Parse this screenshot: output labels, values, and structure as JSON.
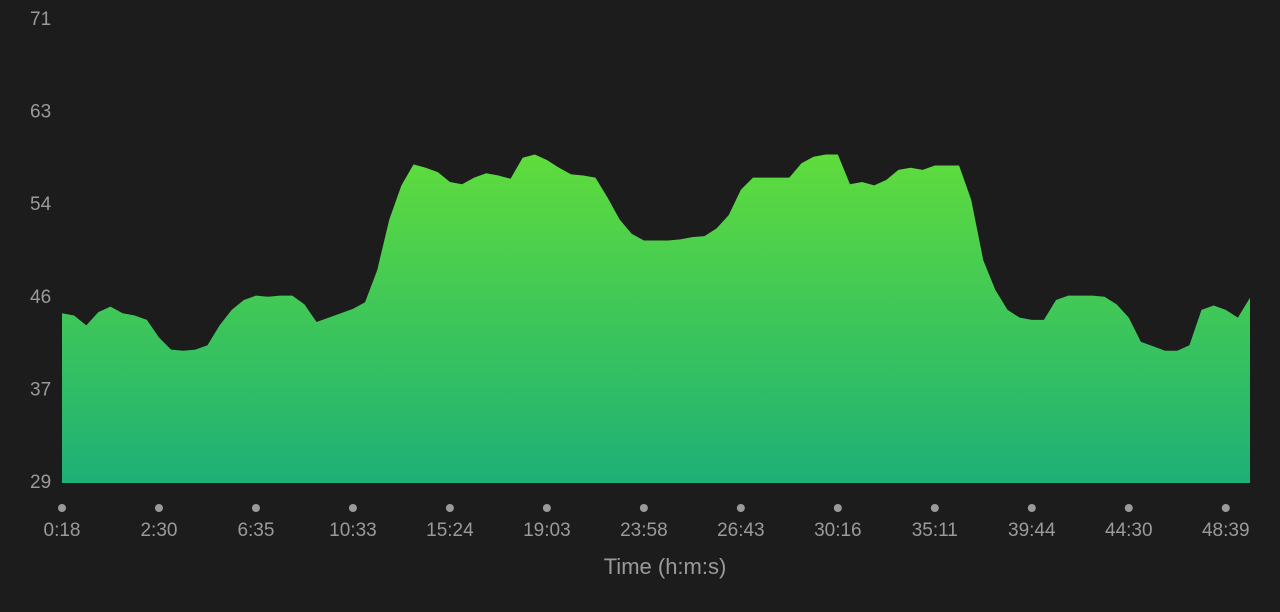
{
  "chart_data": {
    "type": "area",
    "x_label": "Time (h:m:s)",
    "categories": [
      "0:18",
      null,
      null,
      null,
      null,
      null,
      null,
      null,
      "2:30",
      null,
      null,
      null,
      null,
      null,
      null,
      null,
      "6:35",
      null,
      null,
      null,
      null,
      null,
      null,
      null,
      "10:33",
      null,
      null,
      null,
      null,
      null,
      null,
      null,
      "15:24",
      null,
      null,
      null,
      null,
      null,
      null,
      null,
      "19:03",
      null,
      null,
      null,
      null,
      null,
      null,
      null,
      "23:58",
      null,
      null,
      null,
      null,
      null,
      null,
      null,
      "26:43",
      null,
      null,
      null,
      null,
      null,
      null,
      null,
      "30:16",
      null,
      null,
      null,
      null,
      null,
      null,
      null,
      "35:11",
      null,
      null,
      null,
      null,
      null,
      null,
      null,
      "39:44",
      null,
      null,
      null,
      null,
      null,
      null,
      null,
      "44:30",
      null,
      null,
      null,
      null,
      null,
      null,
      null,
      "48:39",
      null,
      null
    ],
    "values": [
      44.4,
      44.2,
      43.3,
      44.5,
      45.0,
      44.4,
      44.2,
      43.8,
      42.2,
      41.1,
      41.0,
      41.1,
      41.5,
      43.3,
      44.7,
      45.6,
      46.0,
      45.9,
      46.0,
      46.0,
      45.2,
      43.6,
      44.0,
      44.4,
      44.8,
      45.4,
      48.3,
      52.9,
      56.0,
      57.9,
      57.6,
      57.2,
      56.3,
      56.1,
      56.7,
      57.1,
      56.9,
      56.6,
      58.5,
      58.8,
      58.3,
      57.6,
      57.0,
      56.9,
      56.7,
      54.9,
      52.9,
      51.6,
      51.0,
      51.0,
      51.0,
      51.1,
      51.3,
      51.4,
      52.1,
      53.3,
      55.6,
      56.7,
      56.7,
      56.7,
      56.7,
      58.0,
      58.6,
      58.8,
      58.8,
      56.1,
      56.3,
      56.0,
      56.5,
      57.4,
      57.6,
      57.4,
      57.8,
      57.8,
      57.8,
      54.7,
      49.2,
      46.5,
      44.7,
      44.0,
      43.8,
      43.8,
      45.6,
      46.0,
      46.0,
      46.0,
      45.9,
      45.2,
      44.0,
      41.8,
      41.4,
      41.0,
      41.0,
      41.5,
      44.7,
      45.1,
      44.7,
      44.0,
      45.8
    ],
    "color": [
      "#5fdc3c",
      "#1db077"
    ],
    "ylim": [
      29,
      71
    ],
    "yticks": [
      29,
      {
        "value": 37.4,
        "label": "37"
      },
      {
        "value": 45.8,
        "label": "46"
      },
      {
        "value": 54.2,
        "label": "54"
      },
      {
        "value": 62.6,
        "label": "63"
      },
      71
    ],
    "grid": false
  }
}
